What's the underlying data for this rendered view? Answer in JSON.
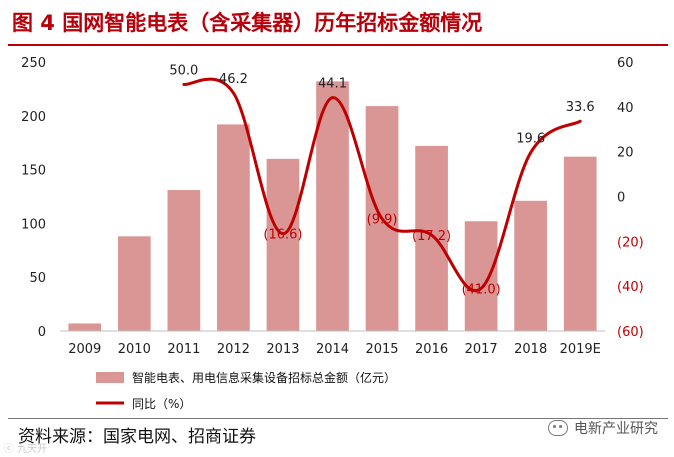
{
  "title": "图 4 国网智能电表（含采集器）历年招标金额情况",
  "source": "资料来源：国家电网、招商证券",
  "watermark": "电新产业研究",
  "corner_mark": "ⓒ 九天开",
  "chart_data": {
    "type": "bar+line",
    "categories": [
      "2009",
      "2010",
      "2011",
      "2012",
      "2013",
      "2014",
      "2015",
      "2016",
      "2017",
      "2018",
      "2019E"
    ],
    "bar_series": {
      "name": "智能电表、用电信息采集设备招标总金额（亿元）",
      "values": [
        7,
        88,
        131,
        192,
        160,
        232,
        209,
        172,
        102,
        121,
        162
      ],
      "color": "#d99694"
    },
    "line_series": {
      "name": "同比（%）",
      "values": [
        null,
        null,
        50.0,
        46.2,
        -16.6,
        44.1,
        -9.9,
        -17.2,
        -41.0,
        19.6,
        33.6
      ],
      "labels": [
        "",
        "",
        "50.0",
        "46.2",
        "(16.6)",
        "44.1",
        "(9.9)",
        "(17.2)",
        "(41.0)",
        "19.6",
        "33.6"
      ],
      "color": "#c00000"
    },
    "y_left": {
      "min": 0,
      "max": 250,
      "ticks": [
        "0",
        "50",
        "100",
        "150",
        "200",
        "250"
      ]
    },
    "y_right": {
      "min": -60,
      "max": 60,
      "ticks": [
        "(60)",
        "(40)",
        "(20)",
        "0",
        "20",
        "40",
        "60"
      ]
    },
    "legend": [
      "智能电表、用电信息采集设备招标总金额（亿元）",
      "同比（%）"
    ],
    "legend_position": "bottom"
  }
}
